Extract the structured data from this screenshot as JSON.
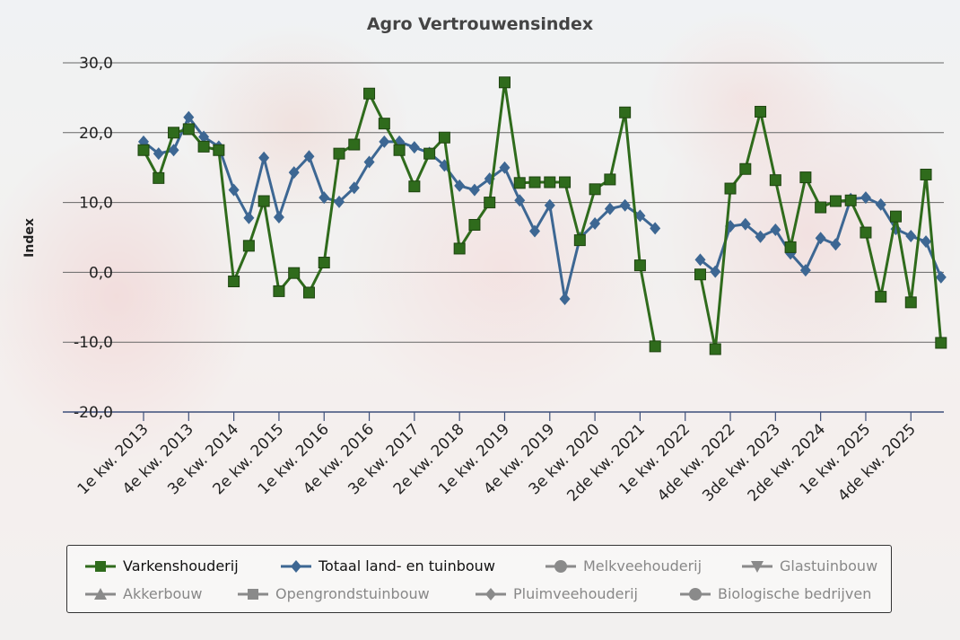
{
  "chart_data": {
    "type": "line",
    "title": "Agro Vertrouwensindex",
    "ylabel": "Index",
    "xlabel": "",
    "ylim": [
      -20,
      30
    ],
    "yticks": [
      "30,0",
      "20,0",
      "10,0",
      "0,0",
      "-10,0",
      "-20,0"
    ],
    "ytick_values": [
      30,
      20,
      10,
      0,
      -10,
      -20
    ],
    "grid": true,
    "legend_position": "bottom",
    "x_tick_labels": [
      "1e kw. 2013",
      "4e kw. 2013",
      "3e kw. 2014",
      "2e kw. 2015",
      "1e kw. 2016",
      "4e kw. 2016",
      "3e kw. 2017",
      "2e kw. 2018",
      "1e kw. 2019",
      "4e kw. 2019",
      "3e kw. 2020",
      "2de kw. 2021",
      "1e kw. 2022",
      "4de kw. 2022",
      "3de kw. 2023",
      "2de kw. 2024",
      "1e kw. 2025",
      "4de kw. 2025"
    ],
    "x_tick_every": 3,
    "series": [
      {
        "name": "Varkenshouderij",
        "color": "#2f6b1c",
        "marker": "square",
        "values": [
          17.5,
          13.5,
          20,
          20.5,
          18,
          17.5,
          -1.3,
          3.8,
          10.2,
          -2.7,
          -0.1,
          -2.9,
          1.4,
          17,
          18.3,
          25.6,
          21.3,
          17.5,
          12.3,
          17,
          19.3,
          3.4,
          6.8,
          10,
          27.2,
          12.8,
          12.9,
          12.9,
          12.9,
          4.6,
          11.9,
          13.3,
          22.9,
          1,
          -10.6,
          null,
          null,
          -0.3,
          -11,
          12,
          14.8,
          23,
          13.2,
          3.6,
          13.6,
          9.3,
          10.2,
          10.3,
          5.7,
          -3.5,
          8,
          -4.3,
          14,
          -10.1
        ]
      },
      {
        "name": "Totaal land- en tuinbouw",
        "color": "#3d6793",
        "marker": "diamond",
        "values": [
          18.7,
          17,
          17.5,
          22.2,
          19.4,
          18,
          11.8,
          7.8,
          16.4,
          7.9,
          14.3,
          16.6,
          10.7,
          10.1,
          12.1,
          15.8,
          18.7,
          18.7,
          17.9,
          17.1,
          15.3,
          12.4,
          11.8,
          13.4,
          15,
          10.3,
          5.9,
          9.6,
          -3.8,
          4.9,
          7,
          9.1,
          9.6,
          8.1,
          6.3,
          null,
          null,
          1.8,
          0.1,
          6.6,
          6.9,
          5.1,
          6.1,
          2.7,
          0.3,
          4.9,
          4,
          10.5,
          10.7,
          9.7,
          6.2,
          5.2,
          4.4,
          -0.7
        ]
      }
    ],
    "hidden_series": [
      "Melkveehouderij",
      "Glastuinbouw",
      "Akkerbouw",
      "Opengrondstuinbouw",
      "Pluimveehouderij",
      "Biologische bedrijven"
    ]
  },
  "legend": [
    {
      "label": "Varkenshouderij",
      "symbol": "square-icon",
      "color": "#2f6b1c",
      "active": true
    },
    {
      "label": "Totaal land- en tuinbouw",
      "symbol": "diamond-icon",
      "color": "#3d6793",
      "active": true
    },
    {
      "label": "Melkveehouderij",
      "symbol": "circle-icon",
      "color": "#8a8a8a",
      "active": false
    },
    {
      "label": "Glastuinbouw",
      "symbol": "triangle-down-icon",
      "color": "#8a8a8a",
      "active": false
    },
    {
      "label": "Akkerbouw",
      "symbol": "triangle-up-icon",
      "color": "#8a8a8a",
      "active": false
    },
    {
      "label": "Opengrondstuinbouw",
      "symbol": "square-icon",
      "color": "#8a8a8a",
      "active": false
    },
    {
      "label": "Pluimveehouderij",
      "symbol": "diamond-icon",
      "color": "#8a8a8a",
      "active": false
    },
    {
      "label": "Biologische bedrijven",
      "symbol": "circle-icon",
      "color": "#8a8a8a",
      "active": false
    }
  ]
}
